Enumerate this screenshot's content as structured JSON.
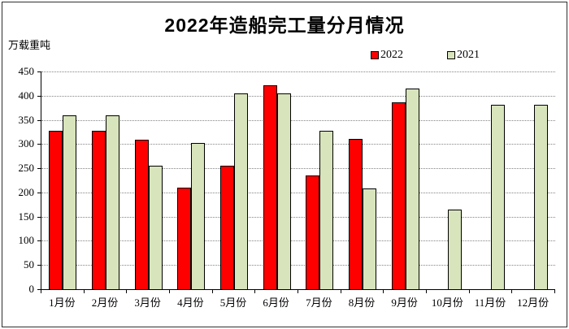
{
  "title": "2022年造船完工量分月情况",
  "unit_label": "万载重吨",
  "legend": {
    "items": [
      {
        "label": "2022",
        "color": "#ff0000"
      },
      {
        "label": "2021",
        "color": "#d8e4bc"
      }
    ]
  },
  "chart_data": {
    "type": "bar",
    "title": "2022年造船完工量分月情况",
    "xlabel": "",
    "ylabel": "万载重吨",
    "ylim": [
      0,
      450
    ],
    "ytick_step": 50,
    "grid": true,
    "gridline_color": "#848484",
    "legend_position": "top-right",
    "bar_border_color": "#000000",
    "categories": [
      "1月份",
      "2月份",
      "3月份",
      "4月份",
      "5月份",
      "6月份",
      "7月份",
      "8月份",
      "9月份",
      "10月份",
      "11月份",
      "12月份"
    ],
    "series": [
      {
        "name": "2022",
        "color": "#ff0000",
        "values": [
          327,
          327,
          309,
          210,
          256,
          422,
          235,
          310,
          387,
          null,
          null,
          null
        ]
      },
      {
        "name": "2021",
        "color": "#d8e4bc",
        "values": [
          360,
          360,
          255,
          302,
          405,
          405,
          327,
          208,
          415,
          165,
          381,
          381
        ]
      }
    ]
  }
}
